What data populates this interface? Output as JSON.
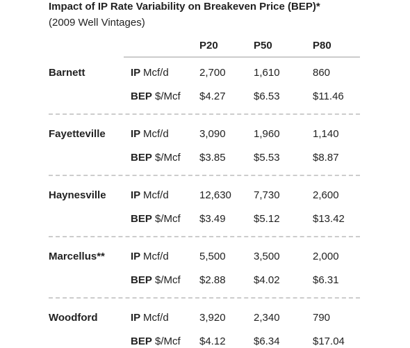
{
  "header": {
    "title": "Impact of IP Rate Variability on Breakeven Price (BEP)*",
    "subtitle": "(2009 Well Vintages)"
  },
  "table": {
    "columns": [
      "P20",
      "P50",
      "P80"
    ],
    "rows": [
      {
        "name": "Barnett",
        "metrics": [
          {
            "label": "IP",
            "unit": "Mcf/d",
            "values": [
              "2,700",
              "1,610",
              "860"
            ]
          },
          {
            "label": "BEP",
            "unit": "$/Mcf",
            "values": [
              "$4.27",
              "$6.53",
              "$11.46"
            ]
          }
        ]
      },
      {
        "name": "Fayetteville",
        "metrics": [
          {
            "label": "IP",
            "unit": "Mcf/d",
            "values": [
              "3,090",
              "1,960",
              "1,140"
            ]
          },
          {
            "label": "BEP",
            "unit": "$/Mcf",
            "values": [
              "$3.85",
              "$5.53",
              "$8.87"
            ]
          }
        ]
      },
      {
        "name": "Haynesville",
        "metrics": [
          {
            "label": "IP",
            "unit": "Mcf/d",
            "values": [
              "12,630",
              "7,730",
              "2,600"
            ]
          },
          {
            "label": "BEP",
            "unit": "$/Mcf",
            "values": [
              "$3.49",
              "$5.12",
              "$13.42"
            ]
          }
        ]
      },
      {
        "name": "Marcellus**",
        "metrics": [
          {
            "label": "IP",
            "unit": "Mcf/d",
            "values": [
              "5,500",
              "3,500",
              "2,000"
            ]
          },
          {
            "label": "BEP",
            "unit": "$/Mcf",
            "values": [
              "$2.88",
              "$4.02",
              "$6.31"
            ]
          }
        ]
      },
      {
        "name": "Woodford",
        "metrics": [
          {
            "label": "IP",
            "unit": "Mcf/d",
            "values": [
              "3,920",
              "2,340",
              "790"
            ]
          },
          {
            "label": "BEP",
            "unit": "$/Mcf",
            "values": [
              "$4.12",
              "$6.34",
              "$17.04"
            ]
          }
        ]
      }
    ]
  }
}
